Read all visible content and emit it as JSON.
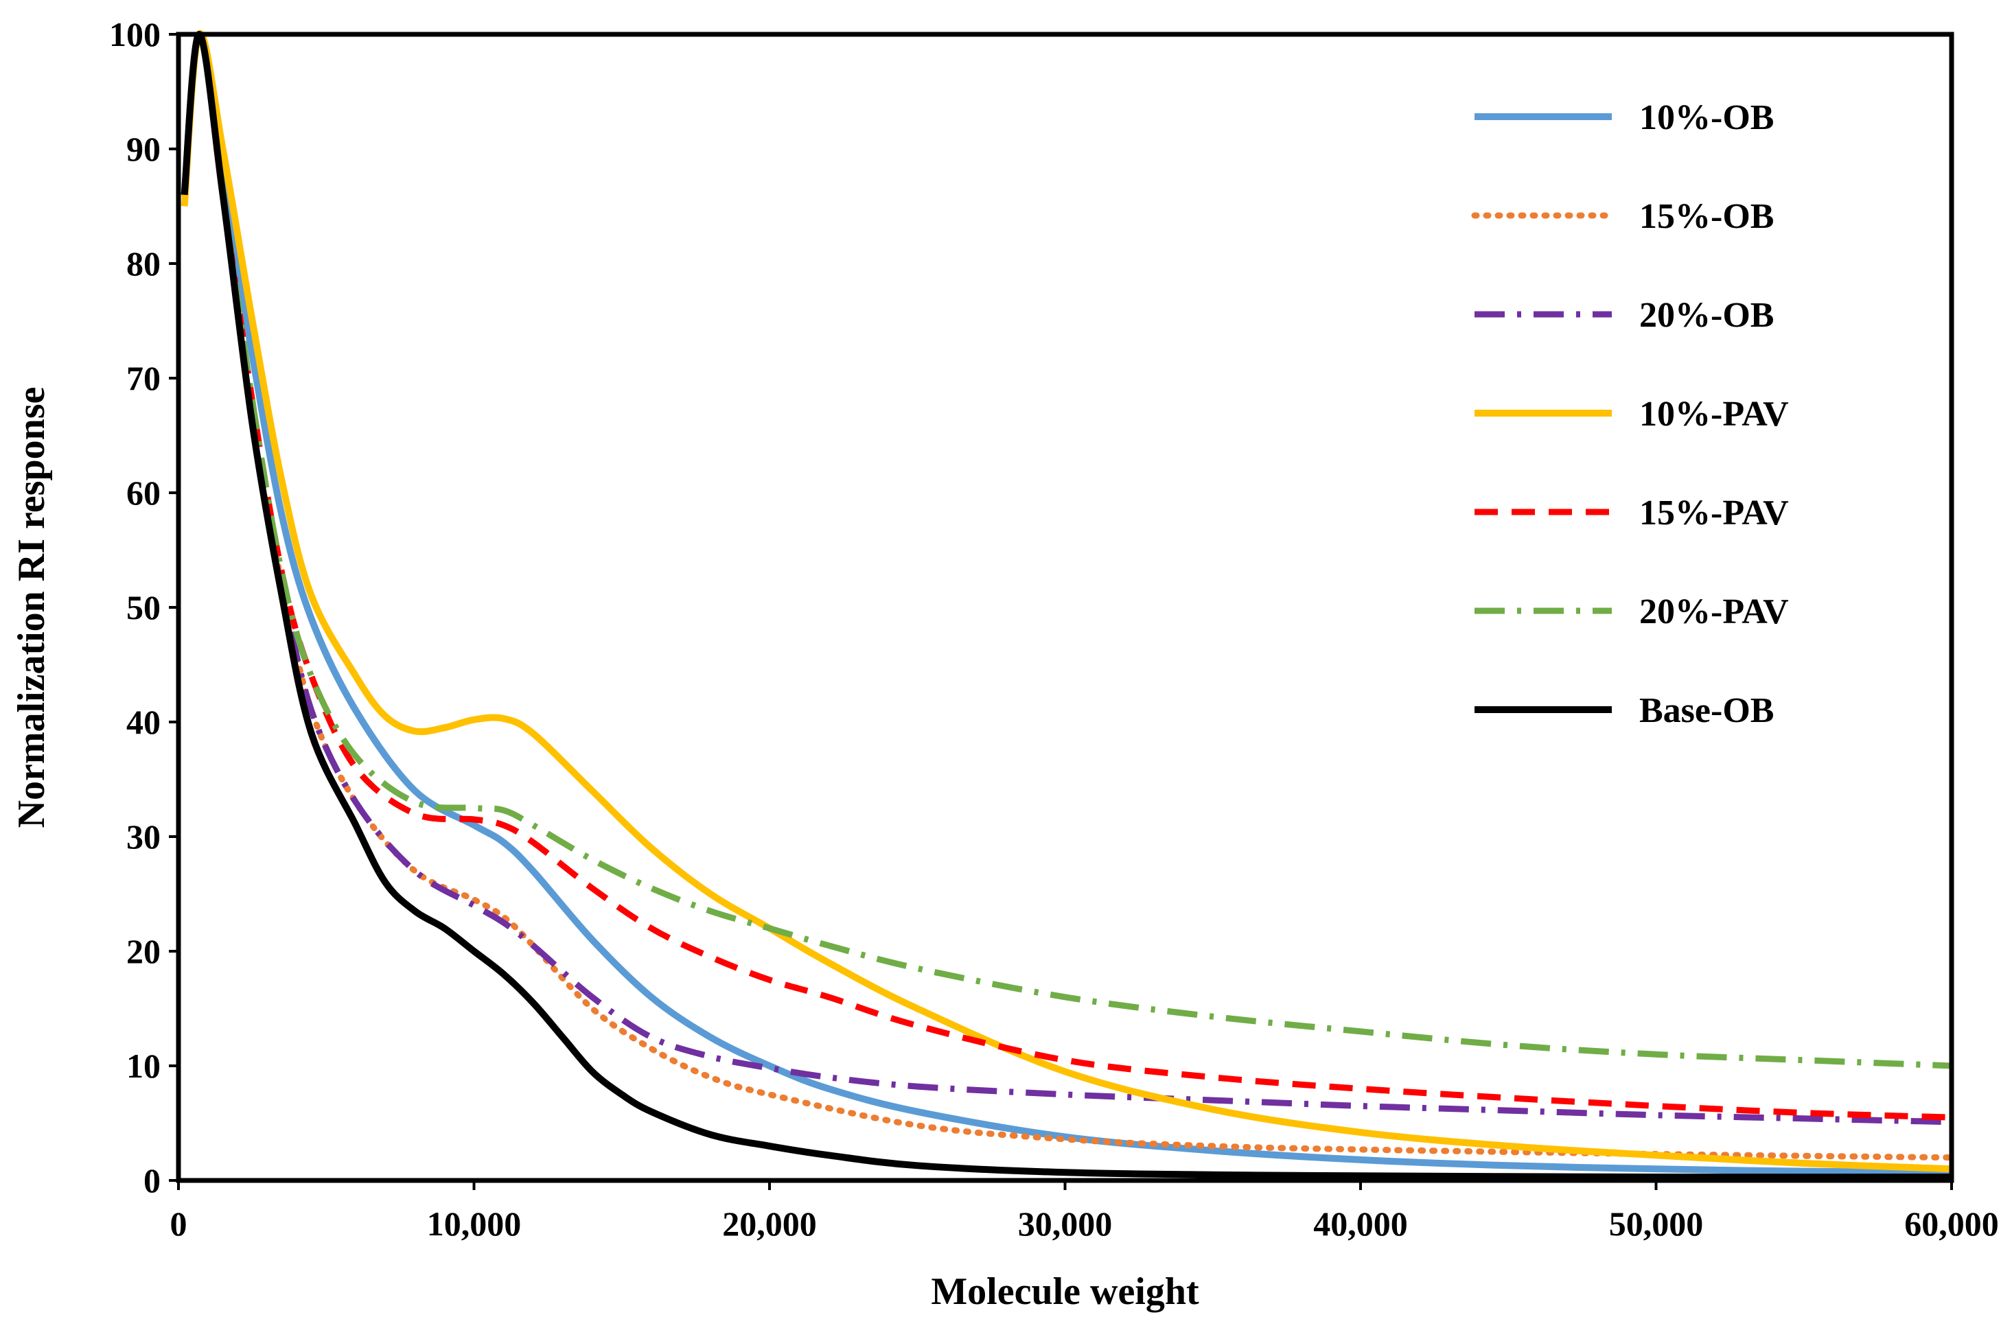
{
  "chart_data": {
    "type": "line",
    "title": "",
    "xlabel": "Molecule weight",
    "ylabel": "Normalization RI response",
    "xlim": [
      0,
      60000
    ],
    "ylim": [
      0,
      100
    ],
    "x_ticks": [
      0,
      10000,
      20000,
      30000,
      40000,
      50000,
      60000
    ],
    "x_tick_labels": [
      "0",
      "10,000",
      "20,000",
      "30,000",
      "40,000",
      "50,000",
      "60,000"
    ],
    "y_ticks": [
      0,
      10,
      20,
      30,
      40,
      50,
      60,
      70,
      80,
      90,
      100
    ],
    "y_tick_labels": [
      "0",
      "10",
      "20",
      "30",
      "40",
      "50",
      "60",
      "70",
      "80",
      "90",
      "100"
    ],
    "grid": false,
    "legend_position": "top-right",
    "series": [
      {
        "name": "10%-OB",
        "color": "#5B9BD5",
        "style": "solid",
        "points": [
          [
            200,
            86
          ],
          [
            700,
            100
          ],
          [
            1500,
            88
          ],
          [
            2500,
            72
          ],
          [
            3500,
            58
          ],
          [
            4500,
            49
          ],
          [
            6000,
            41
          ],
          [
            8000,
            34
          ],
          [
            10000,
            31
          ],
          [
            11000,
            29.5
          ],
          [
            12000,
            27
          ],
          [
            14000,
            21
          ],
          [
            16000,
            16
          ],
          [
            18000,
            12.5
          ],
          [
            20000,
            10
          ],
          [
            22000,
            8
          ],
          [
            25000,
            6
          ],
          [
            30000,
            3.8
          ],
          [
            35000,
            2.6
          ],
          [
            40000,
            1.8
          ],
          [
            45000,
            1.3
          ],
          [
            50000,
            1.0
          ],
          [
            55000,
            0.8
          ],
          [
            60000,
            0.7
          ]
        ]
      },
      {
        "name": "15%-OB",
        "color": "#ED7D31",
        "style": "dotted",
        "points": [
          [
            200,
            86
          ],
          [
            700,
            100
          ],
          [
            1500,
            86
          ],
          [
            2500,
            66
          ],
          [
            3500,
            52
          ],
          [
            4500,
            41
          ],
          [
            6000,
            33
          ],
          [
            8000,
            27
          ],
          [
            10000,
            24.5
          ],
          [
            11000,
            23
          ],
          [
            12000,
            20.5
          ],
          [
            14000,
            15
          ],
          [
            16000,
            11.5
          ],
          [
            18000,
            9
          ],
          [
            20000,
            7.5
          ],
          [
            25000,
            4.8
          ],
          [
            30000,
            3.6
          ],
          [
            35000,
            3.0
          ],
          [
            40000,
            2.7
          ],
          [
            50000,
            2.3
          ],
          [
            60000,
            2.0
          ]
        ]
      },
      {
        "name": "20%-OB",
        "color": "#7030A0",
        "style": "dashdot",
        "points": [
          [
            200,
            86
          ],
          [
            700,
            100
          ],
          [
            1500,
            86
          ],
          [
            2500,
            66
          ],
          [
            3500,
            52
          ],
          [
            4500,
            41
          ],
          [
            6000,
            33
          ],
          [
            8000,
            27
          ],
          [
            10000,
            24
          ],
          [
            11000,
            22.5
          ],
          [
            12000,
            20.5
          ],
          [
            14000,
            16
          ],
          [
            16000,
            12.5
          ],
          [
            18000,
            10.8
          ],
          [
            20000,
            9.8
          ],
          [
            22000,
            9
          ],
          [
            25000,
            8.2
          ],
          [
            30000,
            7.5
          ],
          [
            35000,
            7.0
          ],
          [
            40000,
            6.5
          ],
          [
            45000,
            6.1
          ],
          [
            50000,
            5.7
          ],
          [
            55000,
            5.4
          ],
          [
            60000,
            5.1
          ]
        ]
      },
      {
        "name": "10%-PAV",
        "color": "#FFC000",
        "style": "solid",
        "points": [
          [
            200,
            85
          ],
          [
            700,
            100
          ],
          [
            1500,
            90
          ],
          [
            2500,
            75
          ],
          [
            3500,
            61
          ],
          [
            4500,
            51
          ],
          [
            6000,
            44
          ],
          [
            7000,
            40.5
          ],
          [
            8000,
            39.2
          ],
          [
            9000,
            39.5
          ],
          [
            10000,
            40.2
          ],
          [
            11000,
            40.3
          ],
          [
            12000,
            39
          ],
          [
            14000,
            34
          ],
          [
            16000,
            29
          ],
          [
            18000,
            25
          ],
          [
            20000,
            22
          ],
          [
            22000,
            19
          ],
          [
            25000,
            15
          ],
          [
            30000,
            9.5
          ],
          [
            35000,
            6.2
          ],
          [
            40000,
            4.2
          ],
          [
            45000,
            3.0
          ],
          [
            50000,
            2.2
          ],
          [
            55000,
            1.5
          ],
          [
            60000,
            1.0
          ]
        ]
      },
      {
        "name": "15%-PAV",
        "color": "#FF0000",
        "style": "dashed",
        "points": [
          [
            200,
            86
          ],
          [
            700,
            100
          ],
          [
            1500,
            86
          ],
          [
            2500,
            68
          ],
          [
            3500,
            53
          ],
          [
            4500,
            44
          ],
          [
            6000,
            36
          ],
          [
            8000,
            32
          ],
          [
            10000,
            31.5
          ],
          [
            11000,
            31
          ],
          [
            12000,
            29.5
          ],
          [
            14000,
            25.5
          ],
          [
            16000,
            22
          ],
          [
            18000,
            19.5
          ],
          [
            20000,
            17.5
          ],
          [
            22000,
            16
          ],
          [
            25000,
            13.5
          ],
          [
            30000,
            10.5
          ],
          [
            35000,
            9
          ],
          [
            40000,
            8
          ],
          [
            45000,
            7.2
          ],
          [
            50000,
            6.5
          ],
          [
            55000,
            5.9
          ],
          [
            60000,
            5.5
          ]
        ]
      },
      {
        "name": "20%-PAV",
        "color": "#70AD47",
        "style": "dashdot",
        "points": [
          [
            200,
            86
          ],
          [
            700,
            100
          ],
          [
            1500,
            86
          ],
          [
            2500,
            68
          ],
          [
            3500,
            53
          ],
          [
            4500,
            44
          ],
          [
            6000,
            37
          ],
          [
            8000,
            33
          ],
          [
            10000,
            32.5
          ],
          [
            11000,
            32.3
          ],
          [
            12000,
            31
          ],
          [
            14000,
            28
          ],
          [
            16000,
            25.5
          ],
          [
            18000,
            23.5
          ],
          [
            20000,
            22
          ],
          [
            22000,
            20.5
          ],
          [
            25000,
            18.5
          ],
          [
            30000,
            16
          ],
          [
            35000,
            14.3
          ],
          [
            40000,
            13
          ],
          [
            45000,
            11.8
          ],
          [
            50000,
            11
          ],
          [
            55000,
            10.5
          ],
          [
            60000,
            10
          ]
        ]
      },
      {
        "name": "Base-OB",
        "color": "#000000",
        "style": "solid",
        "points": [
          [
            200,
            86
          ],
          [
            700,
            100
          ],
          [
            1500,
            86
          ],
          [
            2500,
            66
          ],
          [
            3500,
            51
          ],
          [
            4500,
            39
          ],
          [
            6000,
            31
          ],
          [
            7000,
            26
          ],
          [
            8000,
            23.5
          ],
          [
            9000,
            22
          ],
          [
            10000,
            20
          ],
          [
            11000,
            18
          ],
          [
            12000,
            15.5
          ],
          [
            13000,
            12.5
          ],
          [
            14000,
            9.5
          ],
          [
            15000,
            7.5
          ],
          [
            16000,
            6
          ],
          [
            18000,
            4
          ],
          [
            20000,
            3
          ],
          [
            22000,
            2.2
          ],
          [
            25000,
            1.3
          ],
          [
            30000,
            0.7
          ],
          [
            35000,
            0.5
          ],
          [
            40000,
            0.4
          ],
          [
            50000,
            0.3
          ],
          [
            60000,
            0.3
          ]
        ]
      }
    ]
  }
}
